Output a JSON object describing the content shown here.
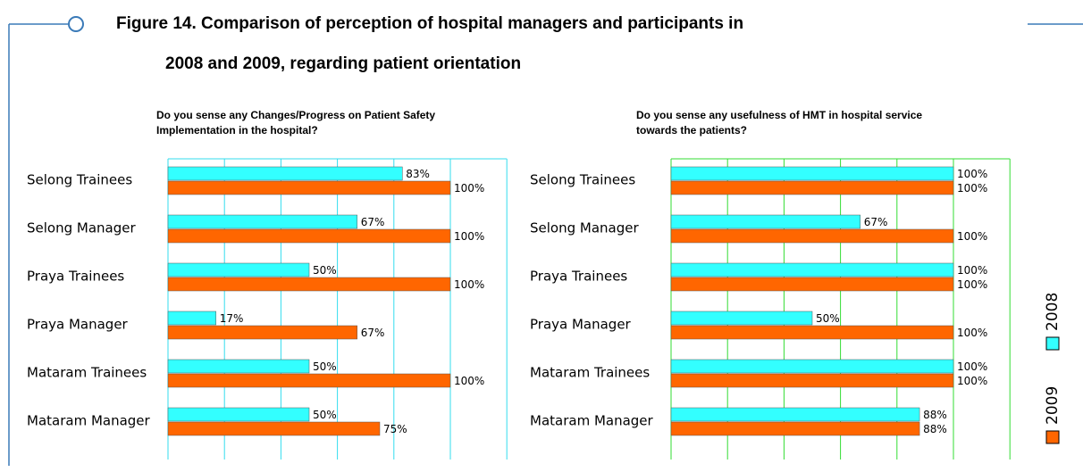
{
  "figure_title": [
    "Figure 14. Comparison of perception of hospital managers and participants in",
    "2008 and 2009, regarding patient orientation"
  ],
  "chart_data": [
    {
      "type": "hbar",
      "title": [
        "Do you sense any Changes/Progress on Patient Safety",
        "Implementation in the hospital?"
      ],
      "categories": [
        "Selong Trainees",
        "Selong Manager",
        "Praya Trainees",
        "Praya Manager",
        "Mataram Trainees",
        "Mataram Manager"
      ],
      "series": [
        {
          "name": "2008",
          "color": "#33ffff",
          "values": [
            83,
            67,
            50,
            17,
            50,
            50
          ],
          "value_labels": [
            "83%",
            "67%",
            "50%",
            "17%",
            "50%",
            "50%"
          ]
        },
        {
          "name": "2009",
          "color": "#ff6600",
          "values": [
            100,
            100,
            100,
            67,
            100,
            75
          ],
          "value_labels": [
            "100%",
            "100%",
            "100%",
            "67%",
            "100%",
            "75%"
          ]
        }
      ],
      "xlim": [
        0,
        120
      ],
      "xticks": [
        0,
        20,
        40,
        60,
        80,
        100,
        120
      ],
      "grid": true,
      "grid_color": "#33ddee"
    },
    {
      "type": "hbar",
      "title": [
        "Do you sense any usefulness of HMT in hospital service",
        "towards the patients?"
      ],
      "categories": [
        "Selong Trainees",
        "Selong Manager",
        "Praya Trainees",
        "Praya Manager",
        "Mataram Trainees",
        "Mataram Manager"
      ],
      "series": [
        {
          "color": "#33ffff",
          "values": [
            100,
            67,
            100,
            50,
            100,
            88
          ],
          "value_labels": [
            "100%",
            "67%",
            "100%",
            "50%",
            "100%",
            "88%"
          ]
        },
        {
          "color": "#ff6600",
          "values": [
            100,
            100,
            100,
            100,
            100,
            88
          ],
          "value_labels": [
            "100%",
            "100%",
            "100%",
            "100%",
            "100%",
            "88%"
          ]
        }
      ],
      "xlim": [
        0,
        120
      ],
      "xticks": [
        0,
        20,
        40,
        60,
        80,
        100,
        120
      ],
      "grid": true,
      "grid_color": "#33dd33"
    }
  ]
}
